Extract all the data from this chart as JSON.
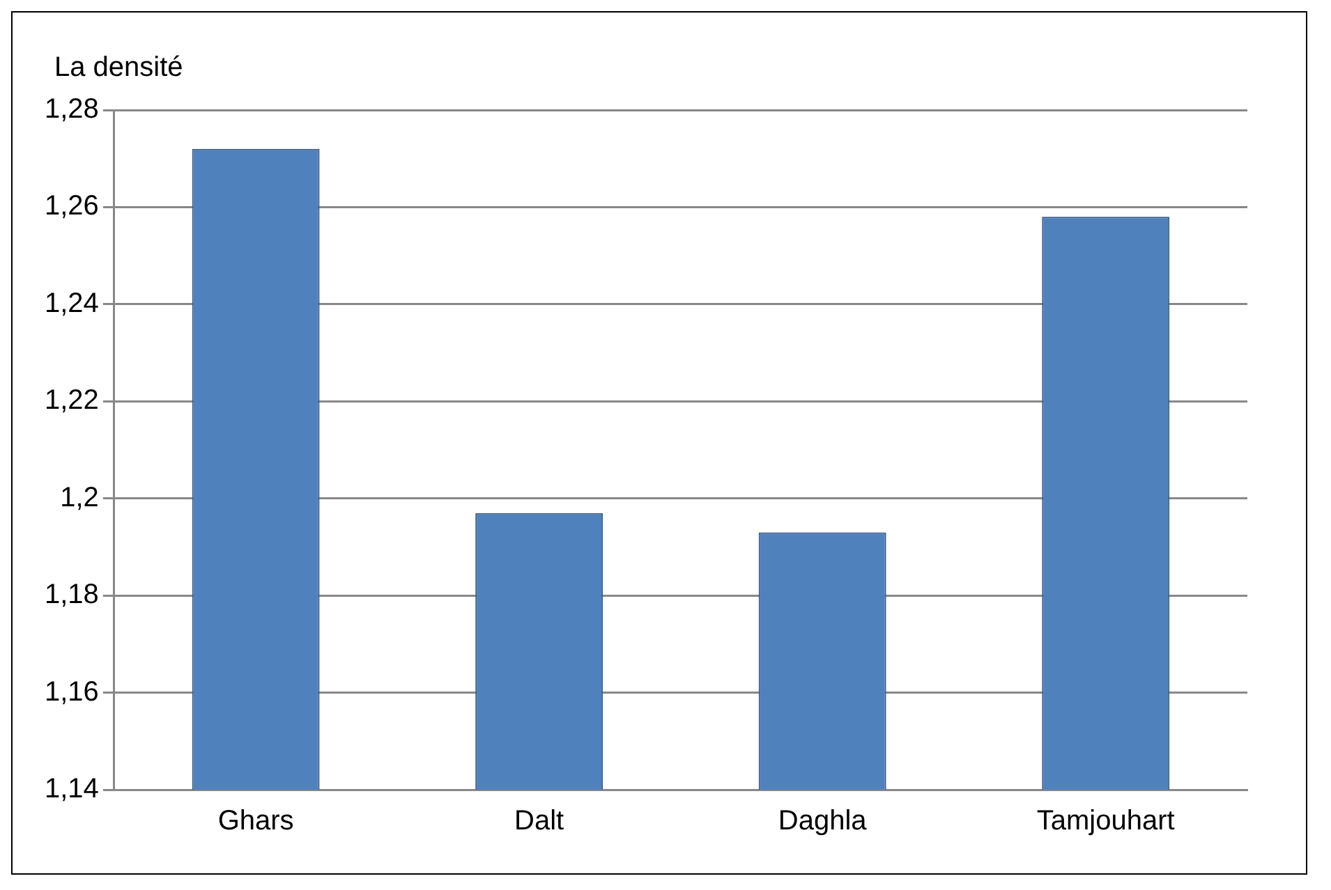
{
  "chart_data": {
    "type": "bar",
    "ylabel": "La densité",
    "categories": [
      "Ghars",
      "Dalt",
      "Daghla",
      "Tamjouhart"
    ],
    "values": [
      1.272,
      1.197,
      1.193,
      1.258
    ],
    "color": "#4f81bd",
    "ylim": [
      1.14,
      1.28
    ],
    "yticks": [
      {
        "value": 1.14,
        "label": "1,14"
      },
      {
        "value": 1.16,
        "label": "1,16"
      },
      {
        "value": 1.18,
        "label": "1,18"
      },
      {
        "value": 1.2,
        "label": "1,2"
      },
      {
        "value": 1.22,
        "label": "1,22"
      },
      {
        "value": 1.24,
        "label": "1,24"
      },
      {
        "value": 1.26,
        "label": "1,26"
      },
      {
        "value": 1.28,
        "label": "1,28"
      }
    ],
    "grid": "y",
    "legend": false
  }
}
